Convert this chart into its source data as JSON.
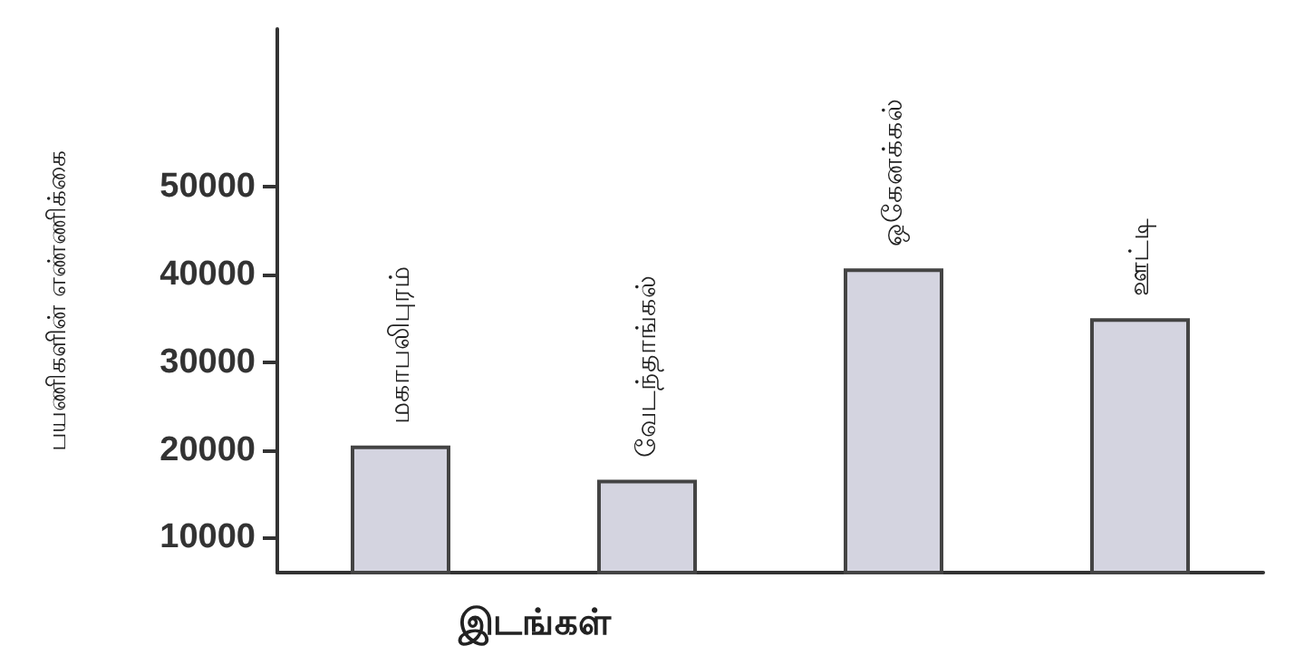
{
  "chart_data": {
    "type": "bar",
    "xlabel": "இடங்கள்",
    "ylabel": "பயணிகளின் எண்ணிக்கை",
    "categories": [
      "மகாபலிபுரம்",
      "வேடந்தாங்கல்",
      "ஒகேனக்கல்",
      "ஊட்டி"
    ],
    "values": [
      20500,
      16600,
      40700,
      35000
    ],
    "color": "#d4d4e0",
    "ylim": [
      6000,
      68000
    ],
    "yticks": [
      10000,
      20000,
      30000,
      40000,
      50000
    ],
    "tick_labels": "y",
    "grid": false
  }
}
